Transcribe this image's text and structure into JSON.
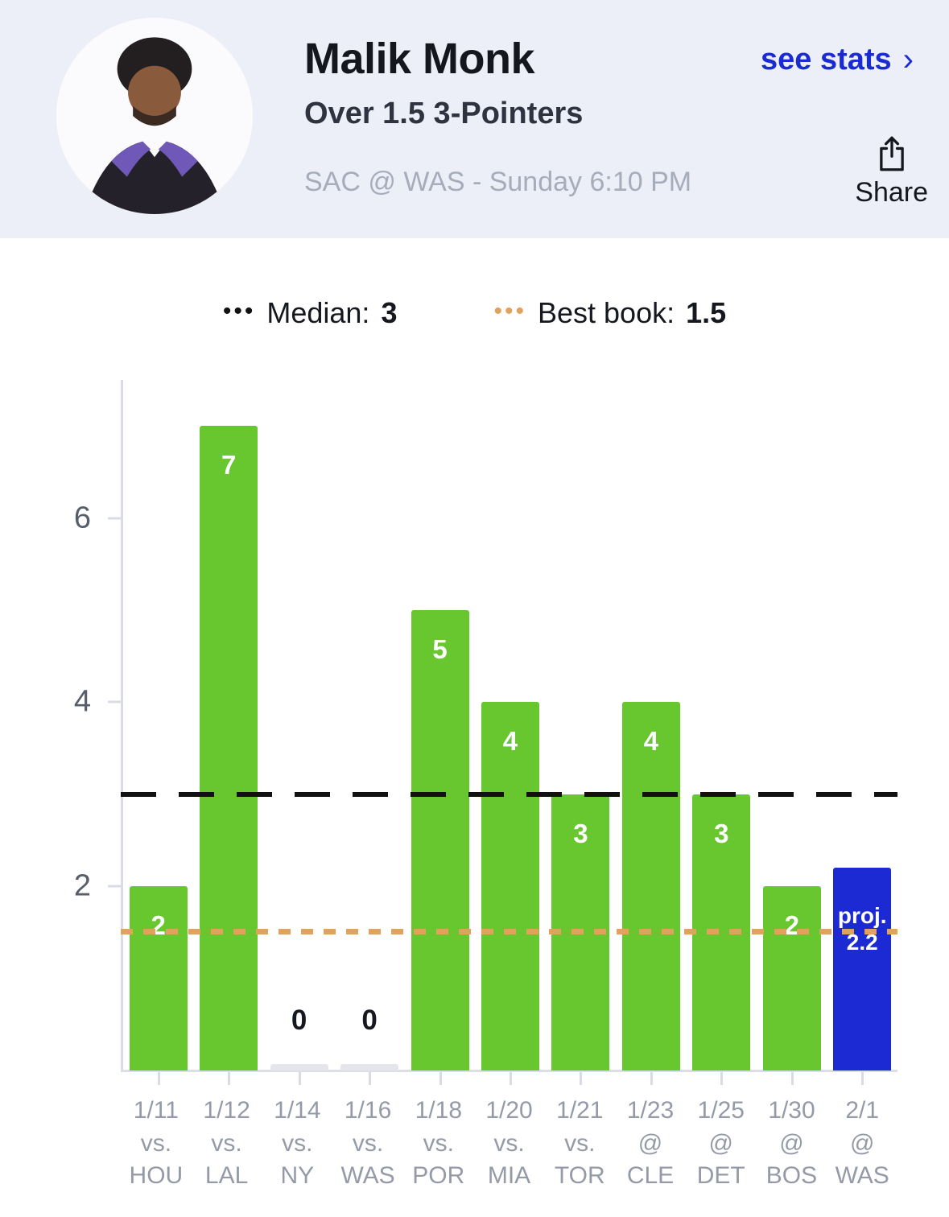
{
  "header": {
    "player_name": "Malik Monk",
    "prop": "Over 1.5 3-Pointers",
    "game_info": "SAC @ WAS - Sunday 6:10 PM",
    "see_stats_label": "see stats",
    "see_stats_chevron": "›",
    "share_label": "Share",
    "colors": {
      "background": "#edeff8",
      "link_blue": "#1b2bd2"
    }
  },
  "legend": {
    "median": {
      "label": "Median:",
      "value": "3",
      "dots": "•••",
      "dot_color": "#111111"
    },
    "best_book": {
      "label": "Best book:",
      "value": "1.5",
      "dots": "•••",
      "dot_color": "#e0a35e"
    }
  },
  "chart_data": {
    "type": "bar",
    "title": "Malik Monk 3-pointers made by game",
    "ylim": [
      0,
      7.5
    ],
    "yticks": [
      2,
      4,
      6
    ],
    "bar_color": "#68c62f",
    "projected_bar_color": "#1c2ad4",
    "zero_stub_color": "#e4e6ec",
    "lines": [
      {
        "name": "median",
        "value": 3,
        "color": "#111111",
        "style": "long-dash"
      },
      {
        "name": "best-book",
        "value": 1.5,
        "color": "#e0a35e",
        "style": "short-dash"
      }
    ],
    "games": [
      {
        "date": "1/11",
        "venue": "vs.",
        "opponent": "HOU",
        "value": 2
      },
      {
        "date": "1/12",
        "venue": "vs.",
        "opponent": "LAL",
        "value": 7
      },
      {
        "date": "1/14",
        "venue": "vs.",
        "opponent": "NY",
        "value": 0
      },
      {
        "date": "1/16",
        "venue": "vs.",
        "opponent": "WAS",
        "value": 0
      },
      {
        "date": "1/18",
        "venue": "vs.",
        "opponent": "POR",
        "value": 5
      },
      {
        "date": "1/20",
        "venue": "vs.",
        "opponent": "MIA",
        "value": 4
      },
      {
        "date": "1/21",
        "venue": "vs.",
        "opponent": "TOR",
        "value": 3
      },
      {
        "date": "1/23",
        "venue": "@",
        "opponent": "CLE",
        "value": 4
      },
      {
        "date": "1/25",
        "venue": "@",
        "opponent": "DET",
        "value": 3
      },
      {
        "date": "1/30",
        "venue": "@",
        "opponent": "BOS",
        "value": 2
      },
      {
        "date": "2/1",
        "venue": "@",
        "opponent": "WAS",
        "value": 2.2,
        "projected": true,
        "proj_label": "proj.",
        "proj_value": "2.2"
      }
    ]
  }
}
